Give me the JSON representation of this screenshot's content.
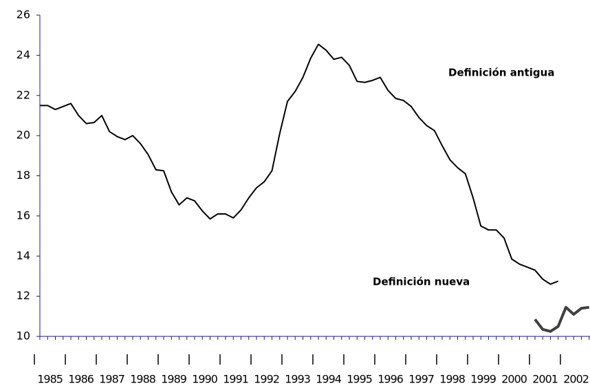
{
  "chart_data": {
    "type": "line",
    "categories": [
      "1985",
      null,
      null,
      null,
      "1986",
      null,
      null,
      null,
      "1987",
      null,
      null,
      null,
      "1988",
      null,
      null,
      null,
      "1989",
      null,
      null,
      null,
      "1990",
      null,
      null,
      null,
      "1991",
      null,
      null,
      null,
      "1992",
      null,
      null,
      null,
      "1993",
      null,
      null,
      null,
      "1994",
      null,
      null,
      null,
      "1995",
      null,
      null,
      null,
      "1996",
      null,
      null,
      null,
      "1997",
      null,
      null,
      null,
      "1998",
      null,
      null,
      null,
      "1999",
      null,
      null,
      null,
      "2000",
      null,
      null,
      null,
      "2001",
      null,
      null,
      null,
      "2002",
      null,
      null,
      null
    ],
    "series": [
      {
        "name": "Definición antigua",
        "color": "#000000",
        "values": [
          21.5,
          21.5,
          21.3,
          21.45,
          21.6,
          21.0,
          20.6,
          20.65,
          21.0,
          20.2,
          19.95,
          19.8,
          20.0,
          19.6,
          19.05,
          18.3,
          18.25,
          17.2,
          16.55,
          16.9,
          16.75,
          16.25,
          15.85,
          16.1,
          16.1,
          15.9,
          16.3,
          16.9,
          17.4,
          17.7,
          18.25,
          20.1,
          21.7,
          22.2,
          22.9,
          23.85,
          24.55,
          24.25,
          23.8,
          23.9,
          23.5,
          22.7,
          22.65,
          22.75,
          22.9,
          22.25,
          21.85,
          21.75,
          21.45,
          20.9,
          20.5,
          20.25,
          19.5,
          18.8,
          18.4,
          18.1,
          16.9,
          15.5,
          15.3,
          15.3,
          14.9,
          13.85,
          13.6,
          13.45,
          13.3,
          12.85,
          12.6,
          12.75,
          null,
          null,
          null,
          null
        ]
      },
      {
        "name": "Definición nueva",
        "color": "#404040",
        "values": [
          null,
          null,
          null,
          null,
          null,
          null,
          null,
          null,
          null,
          null,
          null,
          null,
          null,
          null,
          null,
          null,
          null,
          null,
          null,
          null,
          null,
          null,
          null,
          null,
          null,
          null,
          null,
          null,
          null,
          null,
          null,
          null,
          null,
          null,
          null,
          null,
          null,
          null,
          null,
          null,
          null,
          null,
          null,
          null,
          null,
          null,
          null,
          null,
          null,
          null,
          null,
          null,
          null,
          null,
          null,
          null,
          null,
          null,
          null,
          null,
          null,
          null,
          null,
          null,
          10.85,
          10.35,
          10.25,
          10.5,
          11.45,
          11.1,
          11.4,
          11.45
        ]
      }
    ],
    "ylim": [
      10,
      26
    ],
    "yticks": [
      10,
      12,
      14,
      16,
      18,
      20,
      22,
      24,
      26
    ]
  }
}
